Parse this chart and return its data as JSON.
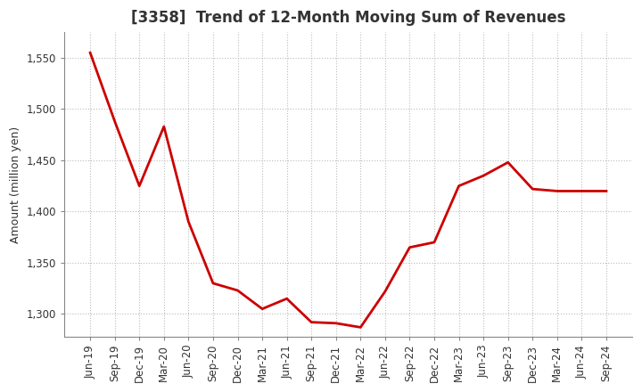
{
  "title": "[3358]  Trend of 12-Month Moving Sum of Revenues",
  "ylabel": "Amount (million yen)",
  "line_color": "#cc0000",
  "background_color": "#ffffff",
  "plot_bg_color": "#ffffff",
  "grid_color": "#bbbbbb",
  "ylim": [
    1278,
    1575
  ],
  "yticks": [
    1300,
    1350,
    1400,
    1450,
    1500,
    1550
  ],
  "labels": [
    "Jun-19",
    "Sep-19",
    "Dec-19",
    "Mar-20",
    "Jun-20",
    "Sep-20",
    "Dec-20",
    "Mar-21",
    "Jun-21",
    "Sep-21",
    "Dec-21",
    "Mar-22",
    "Jun-22",
    "Sep-22",
    "Dec-22",
    "Mar-23",
    "Jun-23",
    "Sep-23",
    "Dec-23",
    "Mar-24",
    "Jun-24",
    "Sep-24"
  ],
  "values": [
    1555,
    1488,
    1425,
    1483,
    1390,
    1330,
    1323,
    1305,
    1315,
    1292,
    1291,
    1287,
    1322,
    1365,
    1370,
    1425,
    1435,
    1448,
    1422,
    1420,
    1420,
    1420
  ],
  "title_fontsize": 12,
  "tick_fontsize": 8.5,
  "ylabel_fontsize": 9,
  "line_width": 2.0
}
